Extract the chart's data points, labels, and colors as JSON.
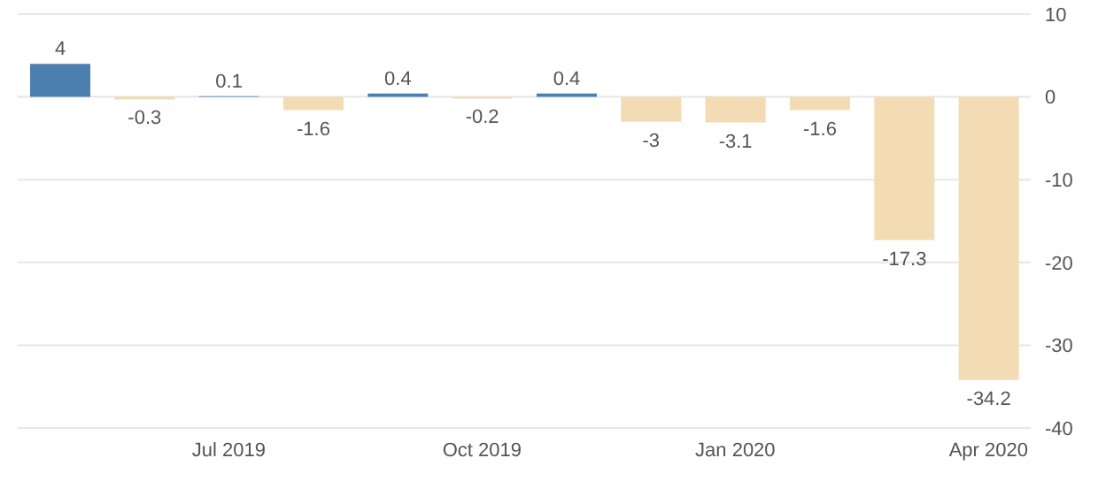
{
  "chart_data": {
    "type": "bar",
    "categories": [
      null,
      null,
      "Jul 2019",
      null,
      null,
      "Oct 2019",
      null,
      null,
      "Jan 2020",
      null,
      null,
      "Apr 2020"
    ],
    "values": [
      4,
      -0.3,
      0.1,
      -1.6,
      0.4,
      -0.2,
      0.4,
      -3,
      -3.1,
      -1.6,
      -17.3,
      -34.2
    ],
    "colors": [
      "#4a7fb0",
      "#f3dcb4",
      "#4a7fb0",
      "#f3dcb4",
      "#4a7fb0",
      "#f3dcb4",
      "#4a7fb0",
      "#f3dcb4",
      "#f3dcb4",
      "#f3dcb4",
      "#f3dcb4",
      "#f3dcb4"
    ],
    "ylim": [
      -40,
      10
    ],
    "yticks": [
      10,
      0,
      -10,
      -20,
      -30,
      -40
    ],
    "grid": "y",
    "data_labels": true
  }
}
